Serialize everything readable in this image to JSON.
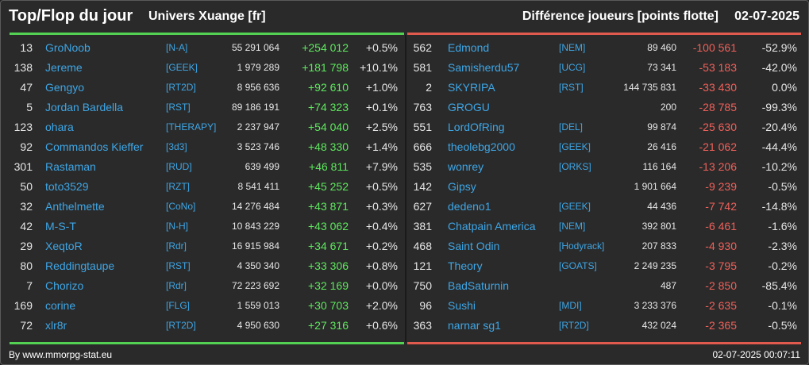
{
  "header": {
    "title": "Top/Flop du jour",
    "universe": "Univers Xuange [fr]",
    "metric": "Différence joueurs [points flotte]",
    "date": "02-07-2025"
  },
  "colors": {
    "top_accent": "#52d152",
    "flop_accent": "#e05a4e",
    "name_link": "#3ea6e6",
    "positive": "#5ee85e",
    "negative": "#f0605a"
  },
  "top": [
    {
      "rank": "13",
      "name": "GroNoob",
      "guild": "[N-A]",
      "value": "55 291 064",
      "diff": "+254 012",
      "pct": "+0.5%"
    },
    {
      "rank": "138",
      "name": "Jereme",
      "guild": "[GEEK]",
      "value": "1 979 289",
      "diff": "+181 798",
      "pct": "+10.1%"
    },
    {
      "rank": "47",
      "name": "Gengyo",
      "guild": "[RT2D]",
      "value": "8 956 636",
      "diff": "+92 610",
      "pct": "+1.0%"
    },
    {
      "rank": "5",
      "name": "Jordan Bardella",
      "guild": "[RST]",
      "value": "89 186 191",
      "diff": "+74 323",
      "pct": "+0.1%"
    },
    {
      "rank": "123",
      "name": "ohara",
      "guild": "[THERAPY]",
      "value": "2 237 947",
      "diff": "+54 040",
      "pct": "+2.5%"
    },
    {
      "rank": "92",
      "name": "Commandos Kieffer",
      "guild": "[3d3]",
      "value": "3 523 746",
      "diff": "+48 330",
      "pct": "+1.4%"
    },
    {
      "rank": "301",
      "name": "Rastaman",
      "guild": "[RUD]",
      "value": "639 499",
      "diff": "+46 811",
      "pct": "+7.9%"
    },
    {
      "rank": "50",
      "name": "toto3529",
      "guild": "[RZT]",
      "value": "8 541 411",
      "diff": "+45 252",
      "pct": "+0.5%"
    },
    {
      "rank": "32",
      "name": "Anthelmette",
      "guild": "[CoNo]",
      "value": "14 276 484",
      "diff": "+43 871",
      "pct": "+0.3%"
    },
    {
      "rank": "42",
      "name": "M-S-T",
      "guild": "[N-H]",
      "value": "10 843 229",
      "diff": "+43 062",
      "pct": "+0.4%"
    },
    {
      "rank": "29",
      "name": "XeqtoR",
      "guild": "[Rdr]",
      "value": "16 915 984",
      "diff": "+34 671",
      "pct": "+0.2%"
    },
    {
      "rank": "80",
      "name": "Reddingtaupe",
      "guild": "[RST]",
      "value": "4 350 340",
      "diff": "+33 306",
      "pct": "+0.8%"
    },
    {
      "rank": "7",
      "name": "Chorizo",
      "guild": "[Rdr]",
      "value": "72 223 692",
      "diff": "+32 169",
      "pct": "+0.0%"
    },
    {
      "rank": "169",
      "name": "corine",
      "guild": "[FLG]",
      "value": "1 559 013",
      "diff": "+30 703",
      "pct": "+2.0%"
    },
    {
      "rank": "72",
      "name": "xlr8r",
      "guild": "[RT2D]",
      "value": "4 950 630",
      "diff": "+27 316",
      "pct": "+0.6%"
    }
  ],
  "flop": [
    {
      "rank": "562",
      "name": "Edmond",
      "guild": "[NEM]",
      "value": "89 460",
      "diff": "-100 561",
      "pct": "-52.9%"
    },
    {
      "rank": "581",
      "name": "Samisherdu57",
      "guild": "[UCG]",
      "value": "73 341",
      "diff": "-53 183",
      "pct": "-42.0%"
    },
    {
      "rank": "2",
      "name": "SKYRIPA",
      "guild": "[RST]",
      "value": "144 735 831",
      "diff": "-33 430",
      "pct": "0.0%"
    },
    {
      "rank": "763",
      "name": "GROGU",
      "guild": "",
      "value": "200",
      "diff": "-28 785",
      "pct": "-99.3%"
    },
    {
      "rank": "551",
      "name": "LordOfRing",
      "guild": "[DEL]",
      "value": "99 874",
      "diff": "-25 630",
      "pct": "-20.4%"
    },
    {
      "rank": "666",
      "name": "theolebg2000",
      "guild": "[GEEK]",
      "value": "26 416",
      "diff": "-21 062",
      "pct": "-44.4%"
    },
    {
      "rank": "535",
      "name": "wonrey",
      "guild": "[ORKS]",
      "value": "116 164",
      "diff": "-13 206",
      "pct": "-10.2%"
    },
    {
      "rank": "142",
      "name": "Gipsy",
      "guild": "",
      "value": "1 901 664",
      "diff": "-9 239",
      "pct": "-0.5%"
    },
    {
      "rank": "627",
      "name": "dedeno1",
      "guild": "[GEEK]",
      "value": "44 436",
      "diff": "-7 742",
      "pct": "-14.8%"
    },
    {
      "rank": "381",
      "name": "Chatpain America",
      "guild": "[NEM]",
      "value": "392 801",
      "diff": "-6 461",
      "pct": "-1.6%"
    },
    {
      "rank": "468",
      "name": "Saint Odin",
      "guild": "[Hodyrack]",
      "value": "207 833",
      "diff": "-4 930",
      "pct": "-2.3%"
    },
    {
      "rank": "121",
      "name": "Theory",
      "guild": "[GOATS]",
      "value": "2 249 235",
      "diff": "-3 795",
      "pct": "-0.2%"
    },
    {
      "rank": "750",
      "name": "BadSaturnin",
      "guild": "",
      "value": "487",
      "diff": "-2 850",
      "pct": "-85.4%"
    },
    {
      "rank": "96",
      "name": "Sushi",
      "guild": "[MDI]",
      "value": "3 233 376",
      "diff": "-2 635",
      "pct": "-0.1%"
    },
    {
      "rank": "363",
      "name": "narnar sg1",
      "guild": "[RT2D]",
      "value": "432 024",
      "diff": "-2 365",
      "pct": "-0.5%"
    }
  ],
  "footer": {
    "credit": "By www.mmorpg-stat.eu",
    "timestamp": "02-07-2025 00:07:11"
  }
}
